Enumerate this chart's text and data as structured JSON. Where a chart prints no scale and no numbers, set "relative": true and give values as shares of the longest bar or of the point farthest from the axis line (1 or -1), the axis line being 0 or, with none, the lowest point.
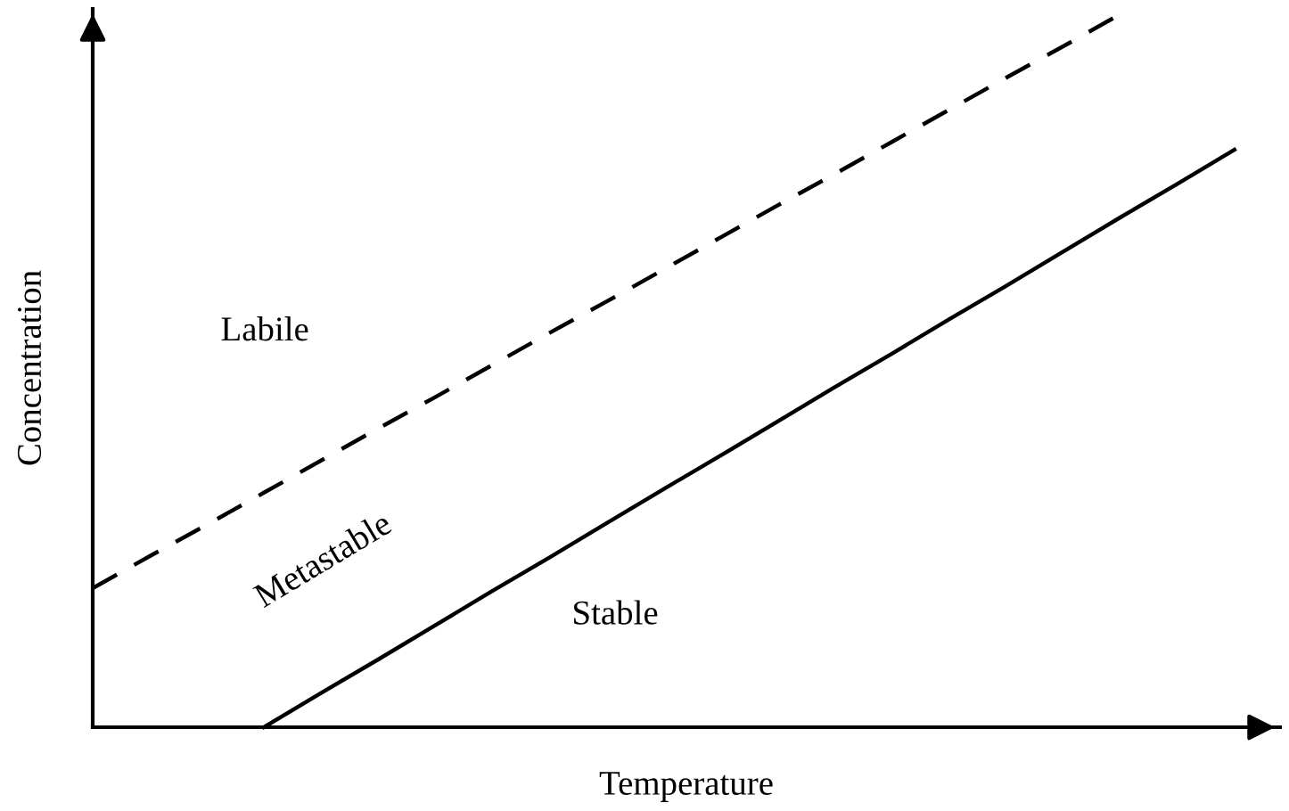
{
  "chart_data": {
    "type": "line",
    "relative": true,
    "xlabel": "Temperature",
    "ylabel": "Concentration",
    "categories": [
      null,
      null,
      null,
      null,
      null,
      null,
      null,
      null,
      null,
      null,
      null,
      null,
      null,
      null,
      null,
      null,
      null,
      null,
      null,
      null,
      null
    ],
    "series": [
      {
        "color": "#000000",
        "line_style": "dashed",
        "values": [
          0.195,
          0.24,
          0.284,
          0.329,
          0.374,
          0.419,
          0.463,
          0.508,
          0.553,
          0.597,
          0.642,
          0.687,
          0.732,
          0.776,
          0.821,
          0.866,
          0.911,
          0.955,
          1.0,
          null,
          null
        ]
      },
      {
        "color": "#000000",
        "line_style": "solid",
        "values": [
          null,
          null,
          null,
          0,
          0.048,
          0.095,
          0.143,
          0.191,
          0.238,
          0.286,
          0.334,
          0.381,
          0.429,
          0.477,
          0.524,
          0.572,
          0.619,
          0.667,
          0.715,
          0.762,
          0.81
        ]
      }
    ],
    "annotations": [
      "Labile",
      "Metastable",
      "Stable"
    ]
  }
}
